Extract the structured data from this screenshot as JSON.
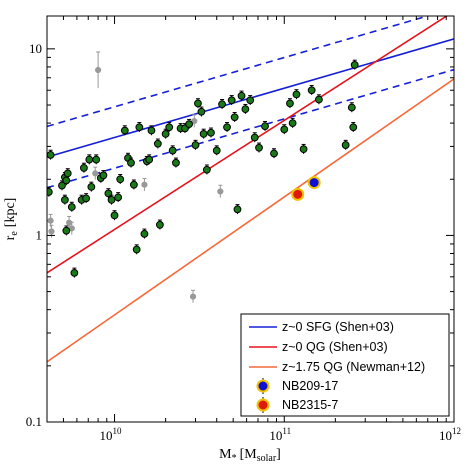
{
  "chart_data": {
    "type": "scatter",
    "x_scale": "log",
    "y_scale": "log",
    "xlim": [
      4000000000.0,
      1000000000000.0
    ],
    "ylim": [
      0.1,
      15
    ],
    "xlabel_main": "M",
    "xlabel_sub": "*",
    "xlabel_unit_open": "[M",
    "xlabel_unit_sub": "solar",
    "xlabel_unit_close": "]",
    "ylabel_main": "r",
    "ylabel_sub": "e",
    "ylabel_unit": "[kpc]",
    "x_ticks": [
      {
        "value": 10000000000.0,
        "base": "10",
        "exp": "10"
      },
      {
        "value": 100000000000.0,
        "base": "10",
        "exp": "11"
      },
      {
        "value": 1000000000000.0,
        "base": "10",
        "exp": "12"
      }
    ],
    "y_ticks": [
      {
        "value": 0.1,
        "label": "0.1"
      },
      {
        "value": 1,
        "label": "1"
      },
      {
        "value": 10,
        "label": "10"
      }
    ],
    "legend_position": "bottom-right",
    "colors": {
      "sfg": "#1520d6",
      "qg": "#e8121a",
      "newman": "#f46a3a",
      "green_point": "#1a7a1a",
      "grey_point": "#999999",
      "nb209_fill": "#1010d0",
      "nb209_edge": "#f2c200",
      "nb2315_fill": "#e01a0a",
      "nb2315_edge": "#f2c200"
    },
    "relations": [
      {
        "name": "z~0 SFG (Shen+03)",
        "color": "#1520d6",
        "x": [
          4000000000.0,
          1000000000000.0
        ],
        "y": [
          2.63,
          11.3
        ],
        "band_factor": 1.46
      },
      {
        "name": "z~0 QG (Shen+03)",
        "color": "#e8121a",
        "x": [
          4000000000.0,
          1000000000000.0
        ],
        "y": [
          0.63,
          15.9
        ]
      },
      {
        "name": "z~1.75 QG (Newman+12)",
        "color": "#f46a3a",
        "x": [
          4000000000.0,
          1000000000000.0
        ],
        "y": [
          0.21,
          6.9
        ]
      }
    ],
    "highlighted_points": [
      {
        "name": "NB209-17",
        "x": 150000000000.0,
        "y": 1.92,
        "fill": "#1010d0",
        "edge": "#f2c200"
      },
      {
        "name": "NB2315-7",
        "x": 120000000000.0,
        "y": 1.66,
        "fill": "#e01a0a",
        "edge": "#f2c200"
      }
    ],
    "legend": [
      {
        "label": "z~0 SFG (Shen+03)",
        "kind": "line",
        "color": "#1520d6"
      },
      {
        "label": "z~0 QG (Shen+03)",
        "kind": "line",
        "color": "#e8121a"
      },
      {
        "label": "z~1.75 QG (Newman+12)",
        "kind": "line",
        "color": "#f46a3a"
      },
      {
        "label": "NB209-17",
        "kind": "marker",
        "fill": "#1010d0",
        "edge": "#f2c200"
      },
      {
        "label": "NB2315-7",
        "kind": "marker",
        "fill": "#e01a0a",
        "edge": "#f2c200"
      }
    ],
    "green_points": [
      [
        4100000000.0,
        1.71
      ],
      [
        4200000000.0,
        2.7
      ],
      [
        4900000000.0,
        1.85
      ],
      [
        5100000000.0,
        2.05
      ],
      [
        5200000000.0,
        1.97
      ],
      [
        5300000000.0,
        2.15
      ],
      [
        5100000000.0,
        1.55
      ],
      [
        5200000000.0,
        1.06
      ],
      [
        5600000000.0,
        1.42
      ],
      [
        5800000000.0,
        0.63
      ],
      [
        6400000000.0,
        1.55
      ],
      [
        6600000000.0,
        2.3
      ],
      [
        6800000000.0,
        1.58
      ],
      [
        7100000000.0,
        2.55
      ],
      [
        7300000000.0,
        1.82
      ],
      [
        7800000000.0,
        2.55
      ],
      [
        8300000000.0,
        2.03
      ],
      [
        8600000000.0,
        2.1
      ],
      [
        9200000000.0,
        1.68
      ],
      [
        9600000000.0,
        1.55
      ],
      [
        10000000000.0,
        1.28
      ],
      [
        10500000000.0,
        1.6
      ],
      [
        10800000000.0,
        2.0
      ],
      [
        11500000000.0,
        3.65
      ],
      [
        12000000000.0,
        2.6
      ],
      [
        12500000000.0,
        2.45
      ],
      [
        13000000000.0,
        1.87
      ],
      [
        13500000000.0,
        0.84
      ],
      [
        14000000000.0,
        3.8
      ],
      [
        15000000000.0,
        1.02
      ],
      [
        15500000000.0,
        2.5
      ],
      [
        16000000000.0,
        2.55
      ],
      [
        16500000000.0,
        3.65
      ],
      [
        18000000000.0,
        3.1
      ],
      [
        18500000000.0,
        1.14
      ],
      [
        20000000000.0,
        3.5
      ],
      [
        21000000000.0,
        3.8
      ],
      [
        22000000000.0,
        2.85
      ],
      [
        23000000000.0,
        2.45
      ],
      [
        24500000000.0,
        3.75
      ],
      [
        26000000000.0,
        3.75
      ],
      [
        27500000000.0,
        3.95
      ],
      [
        30000000000.0,
        3.05
      ],
      [
        31000000000.0,
        5.1
      ],
      [
        32500000000.0,
        4.6
      ],
      [
        33500000000.0,
        3.5
      ],
      [
        35000000000.0,
        2.25
      ],
      [
        37000000000.0,
        3.55
      ],
      [
        40000000000.0,
        2.85
      ],
      [
        43000000000.0,
        5.05
      ],
      [
        46000000000.0,
        3.8
      ],
      [
        49000000000.0,
        5.3
      ],
      [
        51000000000.0,
        4.3
      ],
      [
        53000000000.0,
        1.38
      ],
      [
        56000000000.0,
        5.6
      ],
      [
        59000000000.0,
        4.75
      ],
      [
        63000000000.0,
        5.3
      ],
      [
        67000000000.0,
        3.35
      ],
      [
        71000000000.0,
        2.95
      ],
      [
        77000000000.0,
        3.85
      ],
      [
        87000000000.0,
        2.75
      ],
      [
        100000000000.0,
        3.7
      ],
      [
        108000000000.0,
        5.1
      ],
      [
        112000000000.0,
        4.0
      ],
      [
        118000000000.0,
        5.7
      ],
      [
        130000000000.0,
        2.9
      ],
      [
        145000000000.0,
        6.0
      ],
      [
        160000000000.0,
        5.35
      ],
      [
        230000000000.0,
        3.05
      ],
      [
        250000000000.0,
        4.85
      ],
      [
        255000000000.0,
        3.8
      ],
      [
        260000000000.0,
        8.2
      ]
    ],
    "grey_points": [
      [
        4250000000.0,
        1.05
      ],
      [
        5400000000.0,
        1.17
      ],
      [
        5600000000.0,
        1.09
      ],
      [
        7700000000.0,
        2.15
      ],
      [
        8000000000.0,
        7.7
      ],
      [
        15000000000.0,
        1.87
      ],
      [
        29000000000.0,
        0.47
      ],
      [
        29500000000.0,
        4.1
      ],
      [
        42000000000.0,
        1.72
      ],
      [
        4200000000.0,
        1.2
      ]
    ]
  }
}
